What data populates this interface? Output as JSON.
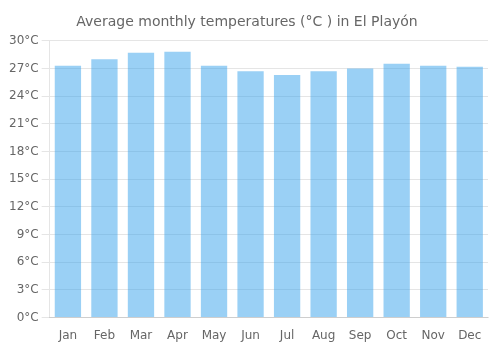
{
  "chart_data": {
    "type": "bar",
    "title": "Average monthly temperatures (°C ) in El Playón",
    "categories": [
      "Jan",
      "Feb",
      "Mar",
      "Apr",
      "May",
      "Jun",
      "Jul",
      "Aug",
      "Sep",
      "Oct",
      "Nov",
      "Dec"
    ],
    "values": [
      27.3,
      28.0,
      28.7,
      28.8,
      27.3,
      26.7,
      26.3,
      26.7,
      27.0,
      27.5,
      27.3,
      27.2
    ],
    "ylim": [
      0,
      30
    ],
    "yticks": [
      {
        "value": 0,
        "label": "0°C"
      },
      {
        "value": 3,
        "label": "3°C"
      },
      {
        "value": 6,
        "label": "6°C"
      },
      {
        "value": 9,
        "label": "9°C"
      },
      {
        "value": 12,
        "label": "12°C"
      },
      {
        "value": 15,
        "label": "15°C"
      },
      {
        "value": 18,
        "label": "18°C"
      },
      {
        "value": 21,
        "label": "21°C"
      },
      {
        "value": 24,
        "label": "24°C"
      },
      {
        "value": 27,
        "label": "27°C"
      },
      {
        "value": 30,
        "label": "30°C"
      }
    ],
    "grid": true
  }
}
